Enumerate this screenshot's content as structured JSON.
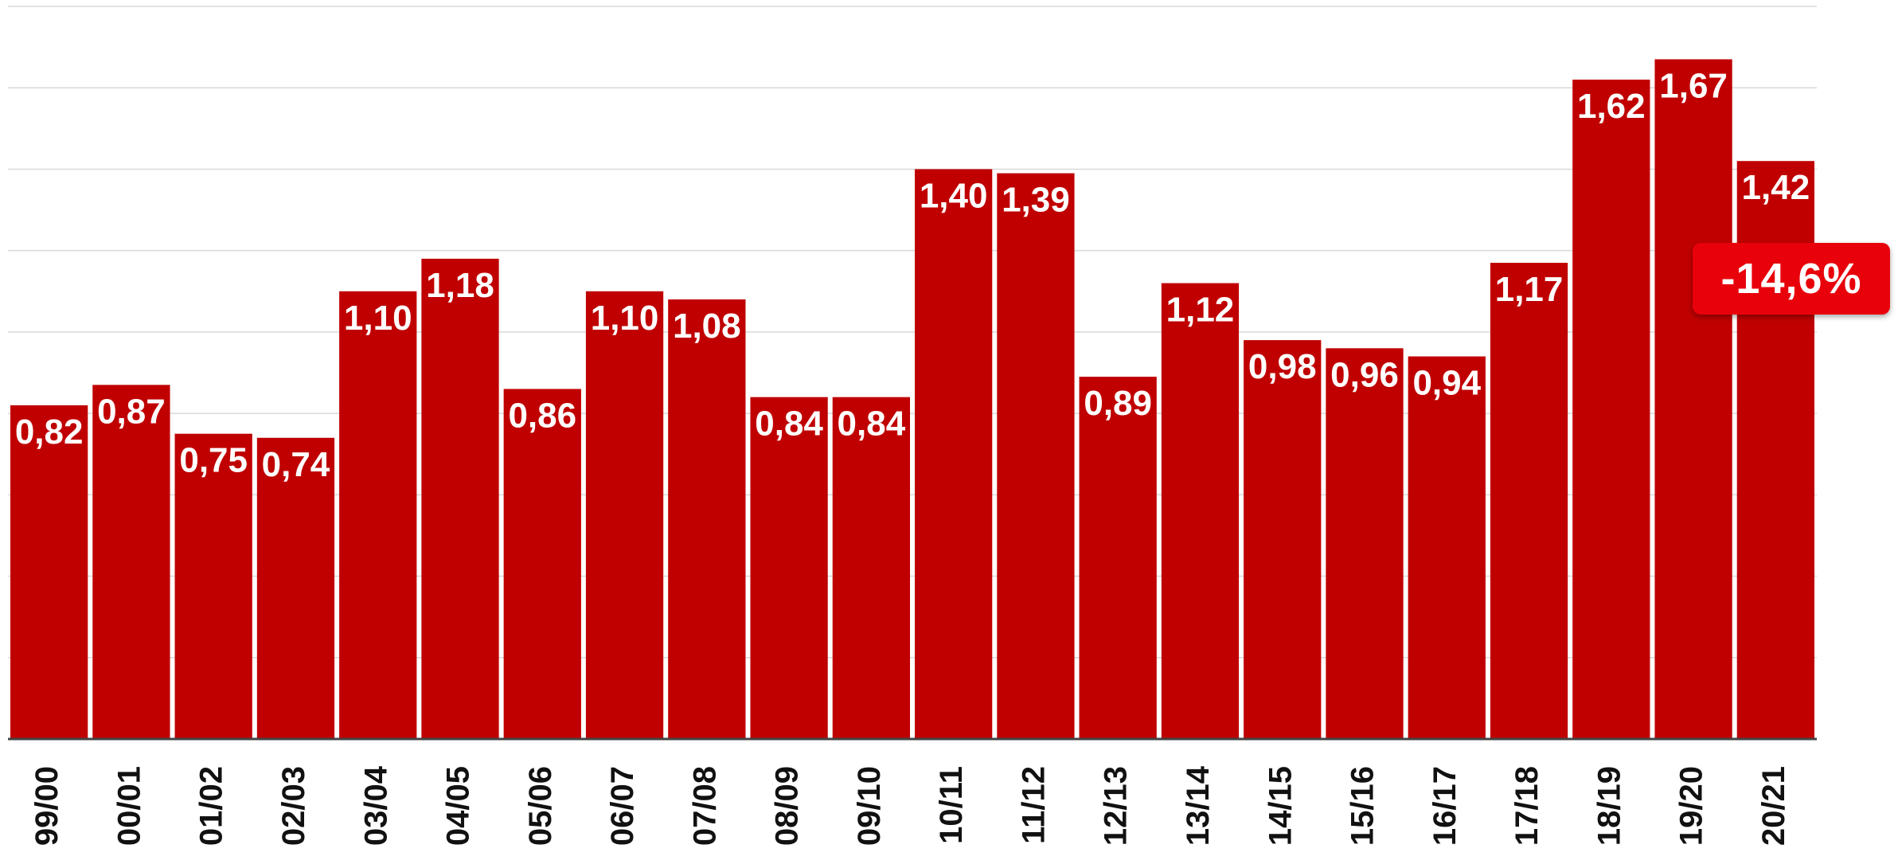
{
  "chart_data": {
    "type": "bar",
    "categories": [
      "99/00",
      "00/01",
      "01/02",
      "02/03",
      "03/04",
      "04/05",
      "05/06",
      "06/07",
      "07/08",
      "08/09",
      "09/10",
      "10/11",
      "11/12",
      "12/13",
      "13/14",
      "14/15",
      "15/16",
      "16/17",
      "17/18",
      "18/19",
      "19/20",
      "20/21"
    ],
    "values": [
      0.82,
      0.87,
      0.75,
      0.74,
      1.1,
      1.18,
      0.86,
      1.1,
      1.08,
      0.84,
      0.84,
      1.4,
      1.39,
      0.89,
      1.12,
      0.98,
      0.96,
      0.94,
      1.17,
      1.62,
      1.67,
      1.42
    ],
    "value_labels": [
      "0,82",
      "0,87",
      "0,75",
      "0,74",
      "1,10",
      "1,18",
      "0,86",
      "1,10",
      "1,08",
      "0,84",
      "0,84",
      "1,40",
      "1,39",
      "0,89",
      "1,12",
      "0,98",
      "0,96",
      "0,94",
      "1,17",
      "1,62",
      "1,67",
      "1,42"
    ],
    "ylim": [
      0,
      1.8
    ],
    "grid": true,
    "colors": {
      "bar": "#C00000",
      "grid": "#D9D9D9",
      "axis": "#444444",
      "callout": "#E8000B"
    },
    "annotation": {
      "text": "-14,6%",
      "target_category": "20/21"
    }
  }
}
